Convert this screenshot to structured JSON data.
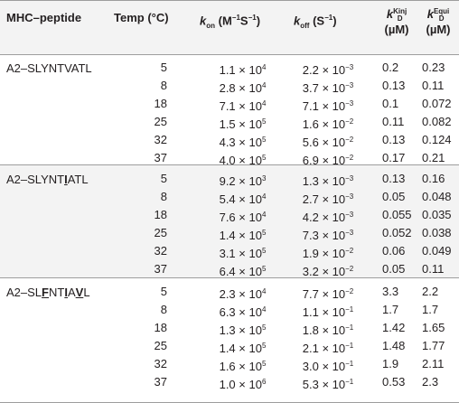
{
  "columns": {
    "mhc_peptide": "MHC–peptide",
    "temp": "Temp (°C)",
    "kon_main": "k",
    "kon_sub": "on",
    "kon_unit": " (M",
    "kon_exp1": "−1",
    "kon_mid": "S",
    "kon_exp2": "−1",
    "kon_end": ")",
    "koff_main": "k",
    "koff_sub": "off",
    "koff_unit": " (S",
    "koff_exp": "−1",
    "koff_end": ")",
    "kdkinj_main": "k",
    "kdkinj_sub": "D",
    "kdkinj_sup": "Kinj",
    "kdkinj_unit": "(µM)",
    "kdequi_main": "k",
    "kdequi_sub": "D",
    "kdequi_sup": "Equi",
    "kdequi_unit": "(µM)"
  },
  "groups": [
    {
      "peptide_parts": [
        {
          "t": "A2–SLYNTVATL",
          "u": false
        }
      ],
      "rows": [
        {
          "temp": "5",
          "kon_m": "1.1",
          "kon_e": "4",
          "koff_m": "2.2",
          "koff_e": "−3",
          "kd_kinj": "0.2",
          "kd_equi": "0.23"
        },
        {
          "temp": "8",
          "kon_m": "2.8",
          "kon_e": "4",
          "koff_m": "3.7",
          "koff_e": "−3",
          "kd_kinj": "0.13",
          "kd_equi": "0.11"
        },
        {
          "temp": "18",
          "kon_m": "7.1",
          "kon_e": "4",
          "koff_m": "7.1",
          "koff_e": "−3",
          "kd_kinj": "0.1",
          "kd_equi": "0.072"
        },
        {
          "temp": "25",
          "kon_m": "1.5",
          "kon_e": "5",
          "koff_m": "1.6",
          "koff_e": "−2",
          "kd_kinj": "0.11",
          "kd_equi": "0.082"
        },
        {
          "temp": "32",
          "kon_m": "4.3",
          "kon_e": "5",
          "koff_m": "5.6",
          "koff_e": "−2",
          "kd_kinj": "0.13",
          "kd_equi": "0.124"
        },
        {
          "temp": "37",
          "kon_m": "4.0",
          "kon_e": "5",
          "koff_m": "6.9",
          "koff_e": "−2",
          "kd_kinj": "0.17",
          "kd_equi": "0.21"
        }
      ]
    },
    {
      "peptide_parts": [
        {
          "t": "A2–SLYNT",
          "u": false
        },
        {
          "t": "I",
          "u": true
        },
        {
          "t": "ATL",
          "u": false
        }
      ],
      "rows": [
        {
          "temp": "5",
          "kon_m": "9.2",
          "kon_e": "3",
          "koff_m": "1.3",
          "koff_e": "−3",
          "kd_kinj": "0.13",
          "kd_equi": "0.16"
        },
        {
          "temp": "8",
          "kon_m": "5.4",
          "kon_e": "4",
          "koff_m": "2.7",
          "koff_e": "−3",
          "kd_kinj": "0.05",
          "kd_equi": "0.048"
        },
        {
          "temp": "18",
          "kon_m": "7.6",
          "kon_e": "4",
          "koff_m": "4.2",
          "koff_e": "−3",
          "kd_kinj": "0.055",
          "kd_equi": "0.035"
        },
        {
          "temp": "25",
          "kon_m": "1.4",
          "kon_e": "5",
          "koff_m": "7.3",
          "koff_e": "−3",
          "kd_kinj": "0.052",
          "kd_equi": "0.038"
        },
        {
          "temp": "32",
          "kon_m": "3.1",
          "kon_e": "5",
          "koff_m": "1.9",
          "koff_e": "−2",
          "kd_kinj": "0.06",
          "kd_equi": "0.049"
        },
        {
          "temp": "37",
          "kon_m": "6.4",
          "kon_e": "5",
          "koff_m": "3.2",
          "koff_e": "−2",
          "kd_kinj": "0.05",
          "kd_equi": "0.11"
        }
      ]
    },
    {
      "peptide_parts": [
        {
          "t": "A2–SL",
          "u": false
        },
        {
          "t": "F",
          "u": true
        },
        {
          "t": "NT",
          "u": false
        },
        {
          "t": "I",
          "u": true
        },
        {
          "t": "A",
          "u": false
        },
        {
          "t": "V",
          "u": true
        },
        {
          "t": "L",
          "u": false
        }
      ],
      "rows": [
        {
          "temp": "5",
          "kon_m": "2.3",
          "kon_e": "4",
          "koff_m": "7.7",
          "koff_e": "−2",
          "kd_kinj": "3.3",
          "kd_equi": "2.2"
        },
        {
          "temp": "8",
          "kon_m": "6.3",
          "kon_e": "4",
          "koff_m": "1.1",
          "koff_e": "−1",
          "kd_kinj": "1.7",
          "kd_equi": "1.7"
        },
        {
          "temp": "18",
          "kon_m": "1.3",
          "kon_e": "5",
          "koff_m": "1.8",
          "koff_e": "−1",
          "kd_kinj": "1.42",
          "kd_equi": "1.65"
        },
        {
          "temp": "25",
          "kon_m": "1.4",
          "kon_e": "5",
          "koff_m": "2.1",
          "koff_e": "−1",
          "kd_kinj": "1.48",
          "kd_equi": "1.77"
        },
        {
          "temp": "32",
          "kon_m": "1.6",
          "kon_e": "5",
          "koff_m": "3.0",
          "koff_e": "−1",
          "kd_kinj": "1.9",
          "kd_equi": "2.11"
        },
        {
          "temp": "37",
          "kon_m": "1.0",
          "kon_e": "6",
          "koff_m": "5.3",
          "koff_e": "−1",
          "kd_kinj": "0.53",
          "kd_equi": "2.3"
        }
      ]
    }
  ]
}
